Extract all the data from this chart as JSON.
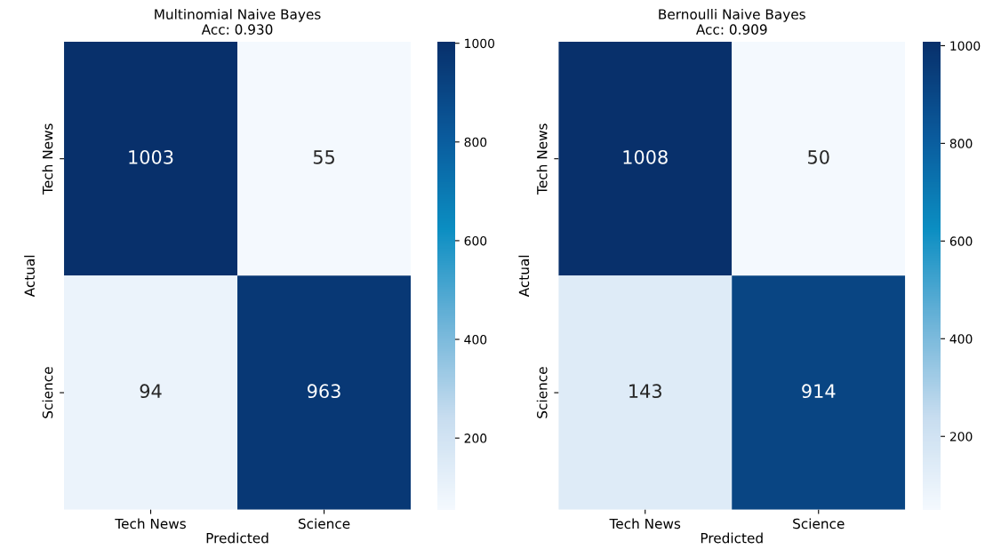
{
  "chart_data": [
    {
      "type": "heatmap",
      "title": "Multinomial Naive Bayes\nAcc: 0.930",
      "xlabel": "Predicted",
      "ylabel": "Actual",
      "categories": [
        "Tech News",
        "Science"
      ],
      "y_categories": [
        "Tech News",
        "Science"
      ],
      "cells": [
        [
          1003,
          55
        ],
        [
          94,
          963
        ]
      ],
      "data_labels": true,
      "clim": [
        55,
        1003
      ],
      "cticks": [
        200,
        400,
        600,
        800,
        1000
      ]
    },
    {
      "type": "heatmap",
      "title": "Bernoulli Naive Bayes\nAcc: 0.909",
      "xlabel": "Predicted",
      "ylabel": "Actual",
      "categories": [
        "Tech News",
        "Science"
      ],
      "y_categories": [
        "Tech News",
        "Science"
      ],
      "cells": [
        [
          1008,
          50
        ],
        [
          143,
          914
        ]
      ],
      "data_labels": true,
      "clim": [
        50,
        1008
      ],
      "cticks": [
        200,
        400,
        600,
        800,
        1000
      ]
    }
  ]
}
